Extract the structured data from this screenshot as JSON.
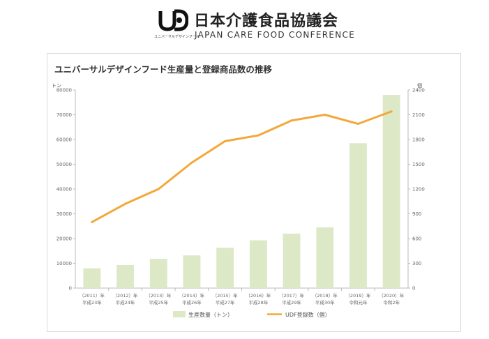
{
  "header": {
    "name_jp": "日本介護食品協議会",
    "name_en": "JAPAN CARE FOOD CONFERENCE",
    "logo_mark": "UDF",
    "logo_sub": "ユニバーサルデザインフード",
    "logo_icon": "udf-logo-icon"
  },
  "chart_data": {
    "type": "bar",
    "title": "ユニバーサルデザインフード生産量と登録商品数の推移",
    "categories": [
      [
        "（2011）年",
        "平成23年"
      ],
      [
        "（2012）年",
        "平成24年"
      ],
      [
        "（2013）年",
        "平成25年"
      ],
      [
        "（2014）年",
        "平成26年"
      ],
      [
        "（2015）年",
        "平成27年"
      ],
      [
        "（2016）年",
        "平成28年"
      ],
      [
        "（2017）年",
        "平成29年"
      ],
      [
        "（2018）年",
        "平成30年"
      ],
      [
        "（2019）年",
        "令和元年"
      ],
      [
        "（2020）年",
        "令和2年"
      ]
    ],
    "y_left": {
      "unit": "トン",
      "ylim": [
        0,
        80000
      ],
      "ticks": [
        "80000",
        "70000",
        "60000",
        "50000",
        "40000",
        "30000",
        "20000",
        "10000",
        "0"
      ]
    },
    "y_right": {
      "unit": "個",
      "ylim": [
        0,
        2400
      ],
      "ticks": [
        "2400",
        "2100",
        "1800",
        "1500",
        "1200",
        "900",
        "600",
        "300",
        "0"
      ]
    },
    "series": [
      {
        "name": "生産数量（トン）",
        "type": "bar",
        "axis": "left",
        "color": "#dce8c6",
        "values": [
          8000,
          9300,
          11800,
          13200,
          16300,
          19300,
          22000,
          24500,
          58500,
          78000
        ]
      },
      {
        "name": "UDF登録数（個）",
        "type": "line",
        "axis": "right",
        "color": "#f3a83a",
        "values": [
          800,
          1020,
          1200,
          1520,
          1780,
          1850,
          2030,
          2100,
          1990,
          2140
        ]
      }
    ],
    "grid": false,
    "legend": "bottom"
  }
}
